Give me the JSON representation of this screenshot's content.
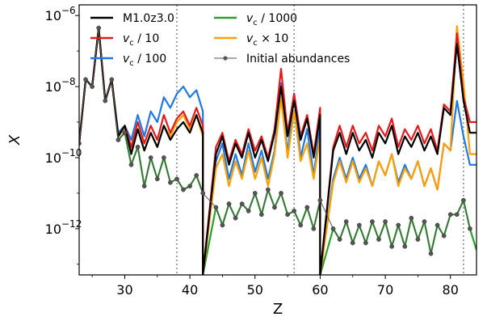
{
  "chart_data": {
    "type": "line",
    "xlabel": "Z",
    "ylabel": "X",
    "xlim": [
      23,
      84
    ],
    "ylim_log10": [
      -13.3,
      -5.7
    ],
    "yscale": "log",
    "x_ticks": [
      30,
      40,
      50,
      60,
      70,
      80
    ],
    "y_ticks": [
      {
        "label": "10",
        "exp": "−6",
        "value": -6
      },
      {
        "label": "10",
        "exp": "−8",
        "value": -8
      },
      {
        "label": "10",
        "exp": "−10",
        "value": -10
      },
      {
        "label": "10",
        "exp": "−12",
        "value": -12
      }
    ],
    "vlines": [
      38,
      56,
      82
    ],
    "legend_position": "top-left",
    "series": [
      {
        "name": "M1.0z3.0",
        "color": "#000000",
        "style": "line",
        "x": [
          23,
          24,
          25,
          26,
          27,
          28,
          29,
          30,
          31,
          32,
          33,
          34,
          35,
          36,
          37,
          38,
          39,
          40,
          41,
          42,
          42,
          44,
          45,
          46,
          47,
          48,
          49,
          50,
          51,
          52,
          53,
          54,
          55,
          56,
          57,
          58,
          59,
          60,
          60,
          62,
          63,
          64,
          65,
          66,
          67,
          68,
          69,
          70,
          71,
          72,
          73,
          74,
          75,
          76,
          77,
          78,
          79,
          80,
          81,
          82,
          83,
          84
        ],
        "y": [
          -9.6,
          -7.8,
          -8.0,
          -6.35,
          -8.4,
          -7.8,
          -9.4,
          -9.1,
          -9.9,
          -9.2,
          -9.8,
          -9.3,
          -9.7,
          -9.1,
          -9.5,
          -9.2,
          -9.0,
          -9.3,
          -8.8,
          -9.3,
          -13.3,
          -9.9,
          -9.4,
          -10.2,
          -9.6,
          -10.0,
          -9.3,
          -10.0,
          -9.5,
          -10.1,
          -9.3,
          -8.0,
          -9.4,
          -8.4,
          -9.5,
          -8.9,
          -10.0,
          -8.8,
          -13.3,
          -9.8,
          -9.3,
          -9.9,
          -9.3,
          -9.8,
          -9.5,
          -10.0,
          -9.3,
          -9.6,
          -9.1,
          -9.9,
          -9.4,
          -9.7,
          -9.3,
          -9.8,
          -9.4,
          -9.9,
          -8.6,
          -8.8,
          -6.8,
          -8.4,
          -9.3,
          -9.3
        ]
      },
      {
        "name": "v_c / 10",
        "color": "#e31a1c",
        "style": "line",
        "x": [
          23,
          24,
          25,
          26,
          27,
          28,
          29,
          30,
          31,
          32,
          33,
          34,
          35,
          36,
          37,
          38,
          39,
          40,
          41,
          42,
          42,
          44,
          45,
          46,
          47,
          48,
          49,
          50,
          51,
          52,
          53,
          54,
          55,
          56,
          57,
          58,
          59,
          60,
          60,
          62,
          63,
          64,
          65,
          66,
          67,
          68,
          69,
          70,
          71,
          72,
          73,
          74,
          75,
          76,
          77,
          78,
          79,
          80,
          81,
          82,
          83,
          84
        ],
        "y": [
          -9.6,
          -7.8,
          -8.0,
          -6.35,
          -8.4,
          -7.8,
          -9.4,
          -9.1,
          -9.7,
          -9.0,
          -9.6,
          -9.1,
          -9.5,
          -8.8,
          -9.3,
          -8.9,
          -8.7,
          -9.1,
          -8.6,
          -9.1,
          -13.3,
          -9.7,
          -9.3,
          -10.1,
          -9.5,
          -9.9,
          -9.2,
          -9.8,
          -9.4,
          -10.0,
          -9.2,
          -7.5,
          -9.3,
          -8.2,
          -9.4,
          -8.8,
          -9.9,
          -8.6,
          -13.3,
          -9.7,
          -9.1,
          -9.7,
          -9.1,
          -9.6,
          -9.3,
          -9.8,
          -9.1,
          -9.4,
          -8.9,
          -9.7,
          -9.2,
          -9.5,
          -9.1,
          -9.6,
          -9.2,
          -9.8,
          -8.5,
          -8.7,
          -6.5,
          -8.3,
          -9.0,
          -9.0
        ]
      },
      {
        "name": "v_c / 100",
        "color": "#1f78e4",
        "style": "line",
        "x": [
          23,
          24,
          25,
          26,
          27,
          28,
          29,
          30,
          31,
          32,
          33,
          34,
          35,
          36,
          37,
          38,
          39,
          40,
          41,
          42,
          42,
          44,
          45,
          46,
          47,
          48,
          49,
          50,
          51,
          52,
          53,
          54,
          55,
          56,
          57,
          58,
          59,
          60,
          60,
          62,
          63,
          64,
          65,
          66,
          67,
          68,
          69,
          70,
          71,
          72,
          73,
          74,
          75,
          76,
          77,
          78,
          79,
          80,
          81,
          82,
          83,
          84
        ],
        "y": [
          -9.6,
          -7.8,
          -8.0,
          -6.35,
          -8.4,
          -7.8,
          -9.3,
          -9.1,
          -9.5,
          -8.8,
          -9.4,
          -8.7,
          -9.0,
          -8.3,
          -8.6,
          -8.2,
          -8.0,
          -8.3,
          -8.1,
          -8.7,
          -13.3,
          -10.1,
          -9.6,
          -10.6,
          -9.9,
          -10.5,
          -9.6,
          -10.4,
          -9.8,
          -10.6,
          -9.8,
          -7.9,
          -9.9,
          -8.2,
          -10.0,
          -9.2,
          -10.5,
          -9.1,
          -13.3,
          -10.6,
          -10.0,
          -10.6,
          -10.0,
          -10.6,
          -10.2,
          -10.8,
          -10.1,
          -10.5,
          -9.9,
          -10.7,
          -10.2,
          -10.6,
          -10.1,
          -10.8,
          -10.3,
          -10.9,
          -9.6,
          -9.8,
          -8.4,
          -9.4,
          -10.2,
          -10.2
        ]
      },
      {
        "name": "v_c / 1000",
        "color": "#2ca02c",
        "style": "line",
        "x": [
          23,
          24,
          25,
          26,
          27,
          28,
          29,
          30,
          31,
          32,
          33,
          34,
          35,
          36,
          37,
          38,
          39,
          40,
          41,
          42,
          42,
          44,
          45,
          46,
          47,
          48,
          49,
          50,
          51,
          52,
          53,
          54,
          55,
          56,
          57,
          58,
          59,
          60,
          60,
          62,
          63,
          64,
          65,
          66,
          67,
          68,
          69,
          70,
          71,
          72,
          73,
          74,
          75,
          76,
          77,
          78,
          79,
          80,
          81,
          82,
          83,
          84
        ],
        "y": [
          -9.6,
          -7.8,
          -8.0,
          -6.35,
          -8.4,
          -7.8,
          -9.5,
          -9.3,
          -10.2,
          -9.7,
          -10.8,
          -10.0,
          -10.6,
          -10.0,
          -10.7,
          -10.6,
          -10.9,
          -10.8,
          -10.5,
          -11.0,
          -13.3,
          -11.4,
          -11.9,
          -11.3,
          -11.7,
          -11.3,
          -11.5,
          -11.0,
          -11.6,
          -10.9,
          -11.4,
          -11.0,
          -11.6,
          -11.5,
          -11.9,
          -11.4,
          -12.0,
          -11.2,
          -13.3,
          -12.0,
          -12.3,
          -11.8,
          -12.4,
          -11.9,
          -12.4,
          -11.8,
          -12.3,
          -11.8,
          -12.5,
          -11.9,
          -12.5,
          -11.7,
          -12.3,
          -11.8,
          -12.7,
          -11.9,
          -12.2,
          -11.6,
          -11.6,
          -11.2,
          -12.0,
          -12.6
        ]
      },
      {
        "name": "v_c × 10",
        "color": "#ff9f00",
        "style": "line",
        "x": [
          23,
          24,
          25,
          26,
          27,
          28,
          29,
          30,
          31,
          32,
          33,
          34,
          35,
          36,
          37,
          38,
          39,
          40,
          41,
          42,
          42,
          44,
          45,
          46,
          47,
          48,
          49,
          50,
          51,
          52,
          53,
          54,
          55,
          56,
          57,
          58,
          59,
          60,
          60,
          62,
          63,
          64,
          65,
          66,
          67,
          68,
          69,
          70,
          71,
          72,
          73,
          74,
          75,
          76,
          77,
          78,
          79,
          80,
          81,
          82,
          83,
          84
        ],
        "y": [
          -9.6,
          -7.8,
          -8.0,
          -6.35,
          -8.4,
          -7.8,
          -9.4,
          -9.2,
          -9.8,
          -9.2,
          -9.8,
          -9.3,
          -9.7,
          -9.1,
          -9.4,
          -9.0,
          -8.8,
          -9.2,
          -8.8,
          -9.4,
          -13.3,
          -10.3,
          -9.9,
          -10.8,
          -10.1,
          -10.6,
          -9.8,
          -10.6,
          -10.0,
          -10.8,
          -9.9,
          -8.3,
          -10.0,
          -8.7,
          -10.1,
          -9.6,
          -10.6,
          -9.4,
          -13.3,
          -10.7,
          -10.1,
          -10.7,
          -10.1,
          -10.7,
          -10.3,
          -10.8,
          -10.1,
          -10.5,
          -9.9,
          -10.8,
          -10.3,
          -10.6,
          -10.1,
          -10.8,
          -10.3,
          -10.9,
          -9.6,
          -9.8,
          -6.3,
          -7.9,
          -9.9,
          -9.9
        ]
      },
      {
        "name": "Initial abundances",
        "color": "#555555",
        "style": "line-marker",
        "x": [
          23,
          24,
          25,
          26,
          27,
          28,
          29,
          30,
          31,
          32,
          33,
          34,
          35,
          36,
          37,
          38,
          39,
          40,
          41,
          42,
          44,
          45,
          46,
          47,
          48,
          49,
          50,
          51,
          52,
          53,
          54,
          55,
          56,
          57,
          58,
          59,
          60,
          62,
          63,
          64,
          65,
          66,
          67,
          68,
          69,
          70,
          71,
          72,
          73,
          74,
          75,
          76,
          77,
          78,
          79,
          80,
          81,
          82,
          83
        ],
        "y": [
          -9.6,
          -7.8,
          -8.0,
          -6.35,
          -8.4,
          -7.8,
          -9.5,
          -9.3,
          -10.2,
          -9.7,
          -10.8,
          -10.0,
          -10.6,
          -10.0,
          -10.7,
          -10.6,
          -10.9,
          -10.8,
          -10.5,
          -11.0,
          -11.4,
          -11.9,
          -11.3,
          -11.7,
          -11.3,
          -11.5,
          -11.0,
          -11.6,
          -10.9,
          -11.4,
          -11.0,
          -11.6,
          -11.5,
          -11.9,
          -11.4,
          -12.0,
          -11.2,
          -12.0,
          -12.3,
          -11.8,
          -12.4,
          -11.9,
          -12.4,
          -11.8,
          -12.3,
          -11.8,
          -12.5,
          -11.9,
          -12.5,
          -11.7,
          -12.3,
          -11.8,
          -12.7,
          -11.9,
          -12.2,
          -11.6,
          -11.6,
          -11.2,
          -12.0
        ]
      }
    ],
    "legend": [
      {
        "label": "M1.0z3.0",
        "color": "#000000",
        "col": 0,
        "row": 0
      },
      {
        "label_italic": "v",
        "label_sub": "c",
        "label_rest": " / 10",
        "color": "#e31a1c",
        "col": 0,
        "row": 1
      },
      {
        "label_italic": "v",
        "label_sub": "c",
        "label_rest": " / 100",
        "color": "#1f78e4",
        "col": 0,
        "row": 2
      },
      {
        "label_italic": "v",
        "label_sub": "c",
        "label_rest": " / 1000",
        "color": "#2ca02c",
        "col": 1,
        "row": 0
      },
      {
        "label_italic": "v",
        "label_sub": "c",
        "label_rest": " × 10",
        "color": "#ff9f00",
        "col": 1,
        "row": 1
      },
      {
        "label": "Initial abundances",
        "color": "#555555",
        "col": 1,
        "row": 2,
        "marker": true
      }
    ]
  }
}
